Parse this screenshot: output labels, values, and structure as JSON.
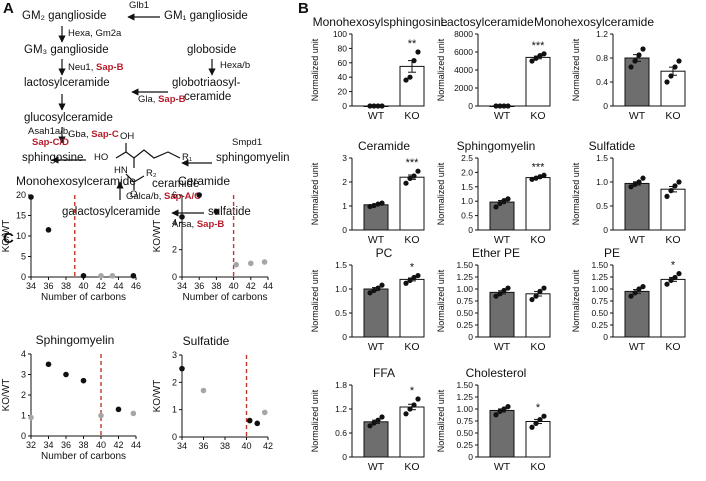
{
  "panels": {
    "a": "A",
    "b": "B",
    "c": "C"
  },
  "pathway": {
    "gm2": "GM₂ ganglioside",
    "gm1": "GM₁ ganglioside",
    "glb1": "Glb1",
    "hexa_gm2a": "Hexa, Gm2a",
    "gm3": "GM₃ ganglioside",
    "globoside": "globoside",
    "hexab": "Hexa/b",
    "neu1": "Neu1,",
    "neu1_sap": "Sap-B",
    "lactosyl": "lactosylceramide",
    "globotri_1": "globotriaosyl-",
    "globotri_2": "ceramide",
    "gla": "Gla,",
    "gla_sap": "Sap-B",
    "glucosyl": "glucosylceramide",
    "gba": "Gba,",
    "gba_sap": "Sap-C",
    "asah": "Asah1a/b,",
    "asah_sap": "Sap-C/D",
    "sphingosine": "sphingosine",
    "smpd1": "Smpd1",
    "sphingomyelin": "sphingomyelin",
    "ceramide": "ceramide",
    "galca": "Galca/b,",
    "galca_sap": "Sap-A/C",
    "galactosyl": "galactosylceramide",
    "sulfatide": "sulfatide",
    "arsa": "Arsa,",
    "arsa_sap": "Sap-B",
    "struct_ho": "HO",
    "struct_oh": "OH",
    "struct_hn": "HN",
    "struct_o": "O",
    "struct_r1": "R₁",
    "struct_r2": "R₂"
  },
  "colors": {
    "wt": "#6e6e6e",
    "ko": "#ffffff",
    "gray_dot": "#a6a6a6",
    "black_dot": "#111111",
    "red_line": "#c0392b",
    "sap": "#b71c2a"
  },
  "chart_data": [
    {
      "type": "bar",
      "title": "Monohexosylsphingosine",
      "categories": [
        "WT",
        "KO"
      ],
      "values": [
        0,
        55
      ],
      "ylabel": "Normalized unit",
      "ylim": [
        0,
        100
      ],
      "yticks": [
        "0",
        "20",
        "40",
        "60",
        "80",
        "100"
      ],
      "sig": "**",
      "wt_points": [
        0,
        0,
        0,
        0
      ],
      "ko_points": [
        36,
        40,
        63,
        75
      ]
    },
    {
      "type": "bar",
      "title": "Lactosylceramide",
      "categories": [
        "WT",
        "KO"
      ],
      "values": [
        0,
        5400
      ],
      "ylabel": "Normalized unit",
      "ylim": [
        0,
        8000
      ],
      "yticks": [
        "0",
        "2000",
        "4000",
        "6000",
        "8000"
      ],
      "sig": "***",
      "wt_points": [
        0,
        0,
        0,
        0
      ],
      "ko_points": [
        5000,
        5300,
        5600,
        5800
      ]
    },
    {
      "type": "bar",
      "title": "Monohexosylceramide",
      "categories": [
        "WT",
        "KO"
      ],
      "values": [
        0.8,
        0.58
      ],
      "ylabel": "Normalized unit",
      "ylim": [
        0,
        1.2
      ],
      "yticks": [
        "0",
        "0.4",
        "0.8",
        "1.2"
      ],
      "sig": "",
      "wt_points": [
        0.65,
        0.75,
        0.85,
        0.95
      ],
      "ko_points": [
        0.4,
        0.5,
        0.65,
        0.75
      ]
    },
    {
      "type": "bar",
      "title": "Ceramide",
      "categories": [
        "WT",
        "KO"
      ],
      "values": [
        1.05,
        2.2
      ],
      "ylabel": "Normalized unit",
      "ylim": [
        0,
        3
      ],
      "yticks": [
        "0",
        "1",
        "2",
        "3"
      ],
      "sig": "***",
      "wt_points": [
        0.98,
        1.02,
        1.08,
        1.12
      ],
      "ko_points": [
        1.95,
        2.15,
        2.25,
        2.45
      ]
    },
    {
      "type": "bar",
      "title": "Sphingomyelin",
      "categories": [
        "WT",
        "KO"
      ],
      "values": [
        0.97,
        1.82
      ],
      "ylabel": "Normalized unit",
      "ylim": [
        0,
        2.5
      ],
      "yticks": [
        "0",
        "0.5",
        "1.0",
        "1.5",
        "2.0",
        "2.5"
      ],
      "sig": "***",
      "wt_points": [
        0.8,
        0.92,
        1.02,
        1.08
      ],
      "ko_points": [
        1.76,
        1.8,
        1.85,
        1.9
      ]
    },
    {
      "type": "bar",
      "title": "Sulfatide",
      "categories": [
        "WT",
        "KO"
      ],
      "values": [
        0.97,
        0.85
      ],
      "ylabel": "Normalized unit",
      "ylim": [
        0,
        1.5
      ],
      "yticks": [
        "0",
        "0.5",
        "1.0",
        "1.5"
      ],
      "sig": "",
      "wt_points": [
        0.9,
        0.95,
        1.0,
        1.08
      ],
      "ko_points": [
        0.7,
        0.82,
        0.92,
        1.0
      ]
    },
    {
      "type": "bar",
      "title": "PC",
      "categories": [
        "WT",
        "KO"
      ],
      "values": [
        1.0,
        1.2
      ],
      "ylabel": "Normalized unit",
      "ylim": [
        0,
        1.5
      ],
      "yticks": [
        "0",
        "0.5",
        "1.0",
        "1.5"
      ],
      "sig": "*",
      "wt_points": [
        0.92,
        0.97,
        1.02,
        1.08
      ],
      "ko_points": [
        1.12,
        1.18,
        1.24,
        1.28
      ]
    },
    {
      "type": "bar",
      "title": "Ether PE",
      "categories": [
        "WT",
        "KO"
      ],
      "values": [
        0.93,
        0.9
      ],
      "ylabel": "Normalized unit",
      "ylim": [
        0,
        1.5
      ],
      "yticks": [
        "0",
        "0.25",
        "0.50",
        "0.75",
        "1.00",
        "1.25",
        "1.50"
      ],
      "sig": "",
      "wt_points": [
        0.85,
        0.9,
        0.97,
        1.02
      ],
      "ko_points": [
        0.78,
        0.85,
        0.95,
        1.02
      ]
    },
    {
      "type": "bar",
      "title": "PE",
      "categories": [
        "WT",
        "KO"
      ],
      "values": [
        0.95,
        1.2
      ],
      "ylabel": "Normalized unit",
      "ylim": [
        0,
        1.5
      ],
      "yticks": [
        "0",
        "0.25",
        "0.50",
        "0.75",
        "1.00",
        "1.25",
        "1.50"
      ],
      "sig": "*",
      "wt_points": [
        0.85,
        0.92,
        1.0,
        1.05
      ],
      "ko_points": [
        1.1,
        1.18,
        1.24,
        1.32
      ]
    },
    {
      "type": "bar",
      "title": "FFA",
      "categories": [
        "WT",
        "KO"
      ],
      "values": [
        0.88,
        1.25
      ],
      "ylabel": "Normalized unit",
      "ylim": [
        0,
        1.8
      ],
      "yticks": [
        "0",
        "0.6",
        "1.2",
        "1.8"
      ],
      "sig": "*",
      "wt_points": [
        0.78,
        0.85,
        0.92,
        1.0
      ],
      "ko_points": [
        1.08,
        1.2,
        1.3,
        1.45
      ]
    },
    {
      "type": "bar",
      "title": "Cholesterol",
      "categories": [
        "WT",
        "KO"
      ],
      "values": [
        0.97,
        0.74
      ],
      "ylabel": "Normalized unit",
      "ylim": [
        0,
        1.5
      ],
      "yticks": [
        "0",
        "0.25",
        "0.50",
        "0.75",
        "1.00",
        "1.25",
        "1.50"
      ],
      "sig": "*",
      "wt_points": [
        0.88,
        0.95,
        1.0,
        1.05
      ],
      "ko_points": [
        0.62,
        0.7,
        0.78,
        0.85
      ]
    },
    {
      "type": "scatter",
      "title": "Monohexosylceramide",
      "xlabel": "Number of carbons",
      "ylabel": "KO/WT",
      "xlim": [
        34,
        46
      ],
      "ylim": [
        0,
        20
      ],
      "xticks": [
        "34",
        "36",
        "38",
        "40",
        "42",
        "44",
        "46"
      ],
      "yticks": [
        "0",
        "5",
        "10",
        "15",
        "20"
      ],
      "cutoff_x": 39,
      "points": [
        {
          "x": 34,
          "y": 19.5,
          "c": "black"
        },
        {
          "x": 36,
          "y": 11.5,
          "c": "black"
        },
        {
          "x": 40,
          "y": 0.3,
          "c": "black"
        },
        {
          "x": 42,
          "y": 0.3,
          "c": "gray"
        },
        {
          "x": 43.3,
          "y": 0.3,
          "c": "gray"
        },
        {
          "x": 45.7,
          "y": 0.3,
          "c": "black"
        }
      ]
    },
    {
      "type": "scatter",
      "title": "Ceramide",
      "xlabel": "Number of carbons",
      "ylabel": "KO/WT",
      "xlim": [
        34,
        44
      ],
      "ylim": [
        0,
        6
      ],
      "xticks": [
        "34",
        "36",
        "38",
        "40",
        "42",
        "44"
      ],
      "yticks": [
        "0",
        "2",
        "4",
        "6"
      ],
      "cutoff_x": 40,
      "points": [
        {
          "x": 34,
          "y": 4.4,
          "c": "black"
        },
        {
          "x": 36,
          "y": 6.0,
          "c": "black"
        },
        {
          "x": 38,
          "y": 4.8,
          "c": "black"
        },
        {
          "x": 40.3,
          "y": 0.9,
          "c": "gray"
        },
        {
          "x": 42,
          "y": 1.0,
          "c": "gray"
        },
        {
          "x": 43.6,
          "y": 1.1,
          "c": "gray"
        }
      ]
    },
    {
      "type": "scatter",
      "title": "Sphingomyelin",
      "xlabel": "Number of carbons",
      "ylabel": "KO/WT",
      "xlim": [
        32,
        44
      ],
      "ylim": [
        0,
        4
      ],
      "xticks": [
        "32",
        "34",
        "36",
        "38",
        "40",
        "42",
        "44"
      ],
      "yticks": [
        "0",
        "1",
        "2",
        "3",
        "4"
      ],
      "cutoff_x": 40,
      "points": [
        {
          "x": 32,
          "y": 0.9,
          "c": "gray"
        },
        {
          "x": 34,
          "y": 3.5,
          "c": "black"
        },
        {
          "x": 36,
          "y": 3.0,
          "c": "black"
        },
        {
          "x": 38,
          "y": 2.7,
          "c": "black"
        },
        {
          "x": 40,
          "y": 1.0,
          "c": "gray"
        },
        {
          "x": 42,
          "y": 1.3,
          "c": "black"
        },
        {
          "x": 43.7,
          "y": 1.1,
          "c": "gray"
        }
      ]
    },
    {
      "type": "scatter",
      "title": "Sulfatide",
      "xlabel": "",
      "ylabel": "KO/WT",
      "xlim": [
        34,
        42
      ],
      "ylim": [
        0,
        3
      ],
      "xticks": [
        "34",
        "36",
        "38",
        "40",
        "42"
      ],
      "yticks": [
        "0",
        "1",
        "2",
        "3"
      ],
      "cutoff_x": 40,
      "points": [
        {
          "x": 34,
          "y": 2.5,
          "c": "black"
        },
        {
          "x": 36,
          "y": 1.7,
          "c": "gray"
        },
        {
          "x": 40.3,
          "y": 0.6,
          "c": "black"
        },
        {
          "x": 41,
          "y": 0.5,
          "c": "black"
        },
        {
          "x": 41.7,
          "y": 0.9,
          "c": "gray"
        }
      ]
    }
  ]
}
